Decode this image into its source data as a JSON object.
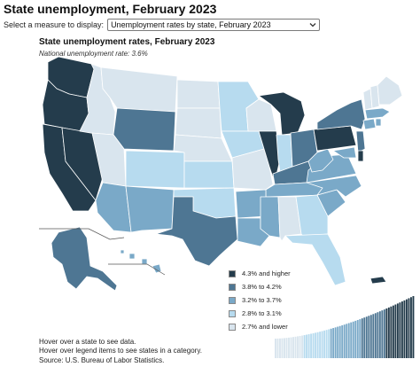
{
  "page": {
    "title": "State unemployment, February 2023"
  },
  "measure": {
    "label": "Select a measure to display:",
    "selected": "Unemployment rates by state, February 2023"
  },
  "map": {
    "title": "State unemployment rates, February 2023",
    "subtitle": "National unemployment rate: 3.6%"
  },
  "legend": {
    "items": [
      {
        "label": "4.3% and higher",
        "color": "#243c4c"
      },
      {
        "label": "3.8% to 4.2%",
        "color": "#4e7693"
      },
      {
        "label": "3.2% to 3.7%",
        "color": "#7aa9c8"
      },
      {
        "label": "2.8% to 3.1%",
        "color": "#b7dbef"
      },
      {
        "label": "2.7% and lower",
        "color": "#d9e5ee"
      }
    ]
  },
  "notes": {
    "hover_state": "Hover over a state to see data.",
    "hover_legend": "Hover over legend items to see states in a category.",
    "source": "Source: U.S. Bureau of Labor Statistics."
  },
  "icons": {
    "select_chevron": "chevron-down-icon"
  },
  "distribution_bar_classes": [
    4,
    4,
    4,
    4,
    4,
    4,
    4,
    4,
    4,
    4,
    4,
    4,
    4,
    3,
    3,
    3,
    3,
    3,
    3,
    3,
    3,
    3,
    3,
    3,
    3,
    2,
    2,
    2,
    2,
    2,
    2,
    2,
    2,
    2,
    2,
    2,
    2,
    2,
    2,
    1,
    1,
    1,
    1,
    1,
    1,
    1,
    1,
    1,
    1,
    1,
    0,
    0,
    0,
    0,
    0,
    0,
    0,
    0,
    0,
    0,
    0,
    0,
    0
  ]
}
